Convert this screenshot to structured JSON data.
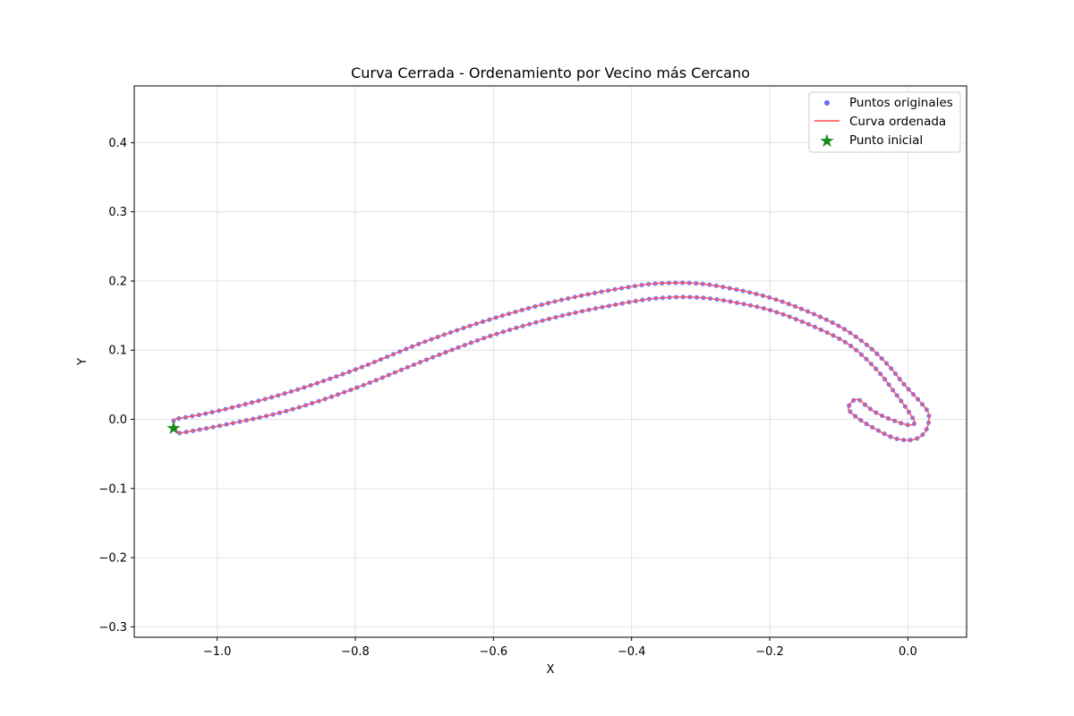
{
  "chart_data": {
    "type": "scatter",
    "title": "Curva Cerrada - Ordenamiento por Vecino más Cercano",
    "xlabel": "X",
    "ylabel": "Y",
    "xlim": [
      -1.12,
      0.085
    ],
    "ylim": [
      -0.315,
      0.482
    ],
    "xticks": [
      -1.0,
      -0.8,
      -0.6,
      -0.4,
      -0.2,
      0.0
    ],
    "xtick_labels": [
      "−1.0",
      "−0.8",
      "−0.6",
      "−0.4",
      "−0.2",
      "0.0"
    ],
    "yticks": [
      -0.3,
      -0.2,
      -0.1,
      0.0,
      0.1,
      0.2,
      0.3,
      0.4
    ],
    "ytick_labels": [
      "−0.3",
      "−0.2",
      "−0.1",
      "0.0",
      "0.1",
      "0.2",
      "0.3",
      "0.4"
    ],
    "grid": true,
    "legend_position": "top-right",
    "series": [
      {
        "name": "Puntos originales",
        "kind": "scatter",
        "color": "#6a6aff",
        "upper_outline": [
          [
            -1.063,
            0.0
          ],
          [
            -1.0,
            0.012
          ],
          [
            -0.9,
            0.038
          ],
          [
            -0.8,
            0.072
          ],
          [
            -0.7,
            0.112
          ],
          [
            -0.6,
            0.146
          ],
          [
            -0.5,
            0.173
          ],
          [
            -0.4,
            0.192
          ],
          [
            -0.35,
            0.197
          ],
          [
            -0.3,
            0.196
          ],
          [
            -0.25,
            0.188
          ],
          [
            -0.2,
            0.176
          ],
          [
            -0.15,
            0.158
          ],
          [
            -0.1,
            0.135
          ],
          [
            -0.06,
            0.108
          ],
          [
            -0.03,
            0.08
          ],
          [
            -0.005,
            0.05
          ],
          [
            0.018,
            0.025
          ],
          [
            0.03,
            0.008
          ],
          [
            0.028,
            -0.012
          ],
          [
            0.018,
            -0.025
          ],
          [
            0.002,
            -0.03
          ],
          [
            -0.02,
            -0.027
          ],
          [
            -0.045,
            -0.015
          ],
          [
            -0.07,
            0.0
          ],
          [
            -0.086,
            0.015
          ],
          [
            -0.078,
            0.028
          ],
          [
            -0.07,
            0.028
          ]
        ],
        "lower_outline": [
          [
            -1.055,
            -0.02
          ],
          [
            -1.0,
            -0.01
          ],
          [
            -0.9,
            0.012
          ],
          [
            -0.8,
            0.045
          ],
          [
            -0.7,
            0.085
          ],
          [
            -0.6,
            0.122
          ],
          [
            -0.5,
            0.15
          ],
          [
            -0.4,
            0.17
          ],
          [
            -0.35,
            0.176
          ],
          [
            -0.3,
            0.176
          ],
          [
            -0.25,
            0.169
          ],
          [
            -0.2,
            0.158
          ],
          [
            -0.15,
            0.14
          ],
          [
            -0.1,
            0.117
          ],
          [
            -0.07,
            0.096
          ],
          [
            -0.04,
            0.066
          ],
          [
            -0.02,
            0.04
          ],
          [
            -0.005,
            0.02
          ],
          [
            0.005,
            0.005
          ],
          [
            0.01,
            -0.005
          ],
          [
            0.0,
            -0.008
          ],
          [
            -0.025,
            0.0
          ],
          [
            -0.05,
            0.012
          ],
          [
            -0.07,
            0.028
          ]
        ]
      },
      {
        "name": "Curva ordenada",
        "kind": "line",
        "color": "#ff4a4a"
      },
      {
        "name": "Punto inicial",
        "kind": "marker",
        "color": "#1a8a1a",
        "point": [
          -1.063,
          -0.012
        ]
      }
    ]
  }
}
